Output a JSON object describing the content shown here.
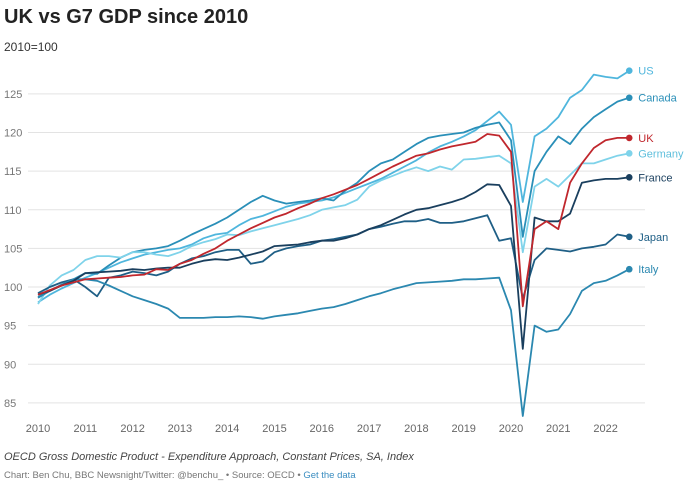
{
  "chart_data": {
    "type": "line",
    "title": "UK vs G7 GDP since 2010",
    "subtitle": "2010=100",
    "xlabel": "",
    "ylabel": "",
    "x_ticks": [
      "2010",
      "2011",
      "2012",
      "2013",
      "2014",
      "2015",
      "2016",
      "2017",
      "2018",
      "2019",
      "2020",
      "2021",
      "2022"
    ],
    "y_ticks": [
      85,
      90,
      95,
      100,
      105,
      110,
      115,
      120,
      125
    ],
    "ylim": [
      82,
      130
    ],
    "xlim": [
      2010,
      2022.6
    ],
    "grid": "horizontal",
    "legend": "direct labels at line ends (right)",
    "x_start": "2010 Q1",
    "frequency": "quarterly",
    "series": [
      {
        "name": "US",
        "color": "#4fb6dd",
        "values": [
          98,
          99,
          99.8,
          100.5,
          101.2,
          101.8,
          102.5,
          103.2,
          103.7,
          104.2,
          104.5,
          104.8,
          105,
          105.5,
          106.3,
          106.8,
          107,
          108,
          108.8,
          109.2,
          109.8,
          110.4,
          110.8,
          111,
          111.2,
          111.6,
          112.2,
          112.8,
          113.4,
          114,
          114.8,
          115.6,
          116.4,
          117.4,
          118.2,
          118.8,
          119.5,
          120.3,
          121.5,
          122.7,
          121,
          111,
          119.5,
          120.5,
          122,
          124.5,
          125.5,
          127.5,
          127.2,
          127,
          128
        ]
      },
      {
        "name": "Canada",
        "color": "#2a8fb8",
        "values": [
          98.7,
          99.5,
          100.3,
          101,
          101.8,
          101.7,
          102.8,
          103.8,
          104.5,
          104.8,
          105,
          105.3,
          106,
          106.8,
          107.5,
          108.2,
          109,
          110,
          111,
          111.8,
          111.2,
          110.8,
          111,
          111.2,
          111.5,
          111.2,
          112.5,
          113.5,
          115,
          116,
          116.5,
          117.5,
          118.5,
          119.3,
          119.6,
          119.8,
          120,
          120.6,
          121,
          121.3,
          119,
          106.5,
          115,
          117.5,
          119.5,
          118.5,
          120.5,
          122,
          123,
          124,
          124.5
        ]
      },
      {
        "name": "UK",
        "color": "#c0272d",
        "values": [
          99,
          99.6,
          100.2,
          100.6,
          101,
          101.1,
          101.2,
          101.3,
          101.5,
          101.6,
          102.3,
          102.2,
          103,
          103.5,
          104.3,
          105,
          106,
          106.8,
          107.6,
          108.3,
          109,
          109.5,
          110.2,
          110.8,
          111.5,
          112,
          112.6,
          113.2,
          114,
          114.8,
          115.6,
          116.3,
          117,
          117.3,
          117.8,
          118.2,
          118.5,
          118.8,
          119.8,
          119.6,
          117.5,
          97.5,
          107.5,
          108.5,
          107.5,
          113.5,
          116,
          118,
          119,
          119.3,
          119.3
        ]
      },
      {
        "name": "Germany",
        "color": "#7fd3ea",
        "values": [
          97.8,
          100.2,
          101.5,
          102.2,
          103.5,
          104,
          104,
          103.8,
          104.5,
          104.5,
          104.2,
          104,
          104.5,
          105.3,
          105.8,
          106.2,
          106.8,
          106.7,
          107.2,
          107.6,
          108,
          108.4,
          108.8,
          109.3,
          110,
          110.3,
          110.6,
          111.3,
          113,
          113.8,
          114.4,
          115,
          115.5,
          115,
          115.6,
          115.2,
          116.5,
          116.6,
          116.8,
          117,
          116,
          104.5,
          113,
          114,
          113,
          114.5,
          116,
          116,
          116.5,
          117,
          117.3
        ]
      },
      {
        "name": "France",
        "color": "#1a3f5e",
        "values": [
          99,
          99.5,
          100.2,
          100.8,
          101.8,
          101.9,
          102,
          102.1,
          102.3,
          102.2,
          102.4,
          102.5,
          102.5,
          103,
          103.4,
          103.6,
          103.5,
          103.8,
          104.2,
          104.6,
          105.3,
          105.4,
          105.5,
          105.8,
          106,
          106,
          106.3,
          106.8,
          107.5,
          108,
          108.7,
          109.4,
          110,
          110.2,
          110.6,
          111,
          111.5,
          112.3,
          113.3,
          113.2,
          110.5,
          92,
          109,
          108.5,
          108.5,
          109.5,
          113.5,
          113.8,
          114,
          114,
          114.2
        ]
      },
      {
        "name": "Japan",
        "color": "#1f5f86",
        "values": [
          99.2,
          100,
          100.6,
          101,
          100,
          98.8,
          101.2,
          101.5,
          102,
          101.8,
          101.5,
          102,
          103,
          103.7,
          104,
          104.5,
          104.8,
          104.8,
          103,
          103.3,
          104.5,
          105,
          105.3,
          105.5,
          106,
          106.2,
          106.5,
          106.8,
          107.5,
          107.8,
          108.2,
          108.5,
          108.5,
          108.8,
          108.3,
          108.3,
          108.5,
          108.9,
          109.3,
          106,
          106.3,
          98.5,
          103.5,
          105,
          104.8,
          104.6,
          105,
          105.2,
          105.5,
          106.8,
          106.5
        ]
      },
      {
        "name": "Italy",
        "color": "#2b88b0",
        "values": [
          98.6,
          99.5,
          100.3,
          101,
          101,
          100.8,
          100.2,
          99.5,
          98.8,
          98.3,
          97.8,
          97.2,
          96,
          96,
          96,
          96.1,
          96.1,
          96.2,
          96.1,
          95.9,
          96.2,
          96.4,
          96.6,
          96.9,
          97.2,
          97.4,
          97.8,
          98.3,
          98.8,
          99.2,
          99.7,
          100.1,
          100.5,
          100.6,
          100.7,
          100.8,
          101,
          101,
          101.1,
          101.2,
          97,
          83.3,
          95,
          94.2,
          94.5,
          96.5,
          99.5,
          100.5,
          100.8,
          101.5,
          102.3
        ]
      }
    ]
  },
  "footer": {
    "source_title": "OECD Gross Domestic Product - Expenditure Approach, Constant Prices, SA, Index",
    "credit": "Chart: Ben Chu, BBC Newsnight/Twitter: @benchu_ • Source: OECD • ",
    "data_link": "Get the data"
  }
}
